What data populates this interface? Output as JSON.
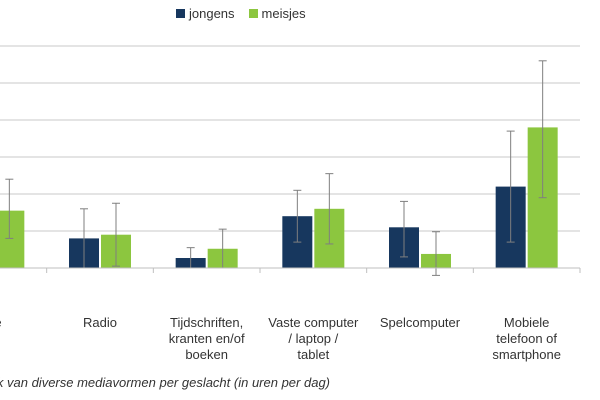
{
  "chart_data": {
    "type": "bar",
    "categories": [
      [
        "sie"
      ],
      [
        "Radio"
      ],
      [
        "Tijdschriften,",
        "kranten en/of",
        "boeken"
      ],
      [
        "Vaste computer",
        "/ laptop /",
        "tablet"
      ],
      [
        "Spelcomputer"
      ],
      [
        "Mobiele",
        "telefoon of",
        "smartphone"
      ]
    ],
    "series": [
      {
        "name": "jongens",
        "color": "#17375e",
        "values": [
          1.2,
          0.8,
          0.27,
          1.4,
          1.1,
          2.2
        ],
        "error_low": [
          0.5,
          0.0,
          0.0,
          0.7,
          0.3,
          0.7
        ],
        "error_high": [
          2.2,
          1.6,
          0.55,
          2.1,
          1.8,
          3.7
        ]
      },
      {
        "name": "meisjes",
        "color": "#8cc63f",
        "values": [
          1.55,
          0.9,
          0.52,
          1.6,
          0.38,
          3.8
        ],
        "error_low": [
          0.8,
          0.05,
          0.0,
          0.65,
          -0.2,
          1.9
        ],
        "error_high": [
          2.4,
          1.75,
          1.05,
          2.55,
          0.98,
          5.6
        ]
      }
    ],
    "ylim": [
      -0.8,
      6
    ],
    "grid": true,
    "legend_position": "top",
    "caption": "ik van diverse mediavormen per geslacht (in uren per dag)"
  }
}
